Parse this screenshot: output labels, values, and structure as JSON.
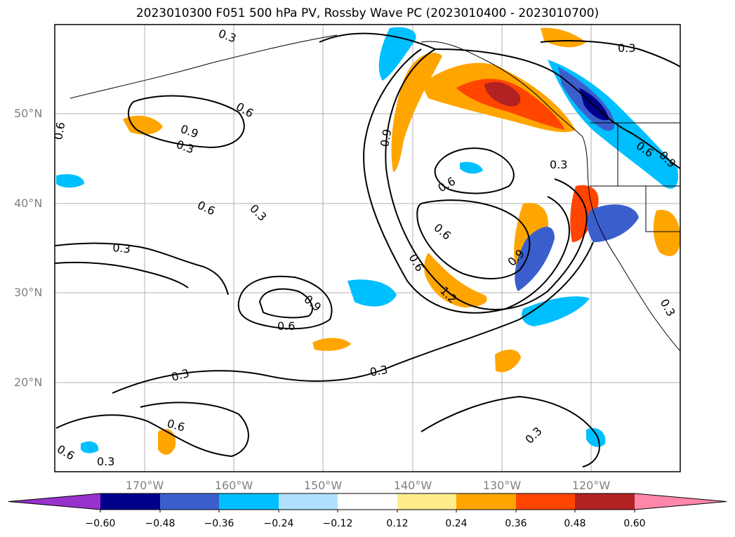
{
  "title": "2023010300 F051 500 hPa PV, Rossby Wave PC (2023010400 - 2023010700)",
  "lat_labels": [
    "50°N",
    "40°N",
    "30°N",
    "20°N"
  ],
  "lon_labels": [
    "170°W",
    "160°W",
    "150°W",
    "140°W",
    "130°W",
    "120°W"
  ],
  "contour_labels": [
    "0.3",
    "0.6",
    "0.9",
    "1.2"
  ],
  "colorbar": {
    "ticks": [
      "−0.60",
      "−0.48",
      "−0.36",
      "−0.24",
      "−0.12",
      "0.12",
      "0.24",
      "0.36",
      "0.48",
      "0.60"
    ],
    "colors": [
      "#9932cc",
      "#00008b",
      "#3a5fcd",
      "#00bfff",
      "#b0e2ff",
      "#ffffff",
      "#ffec8b",
      "#ffa500",
      "#ff4500",
      "#b22222",
      "#ff88aa"
    ]
  },
  "map": {
    "lat_range": [
      10,
      60
    ],
    "lon_range": [
      -180,
      -110
    ],
    "gridlines": true
  }
}
